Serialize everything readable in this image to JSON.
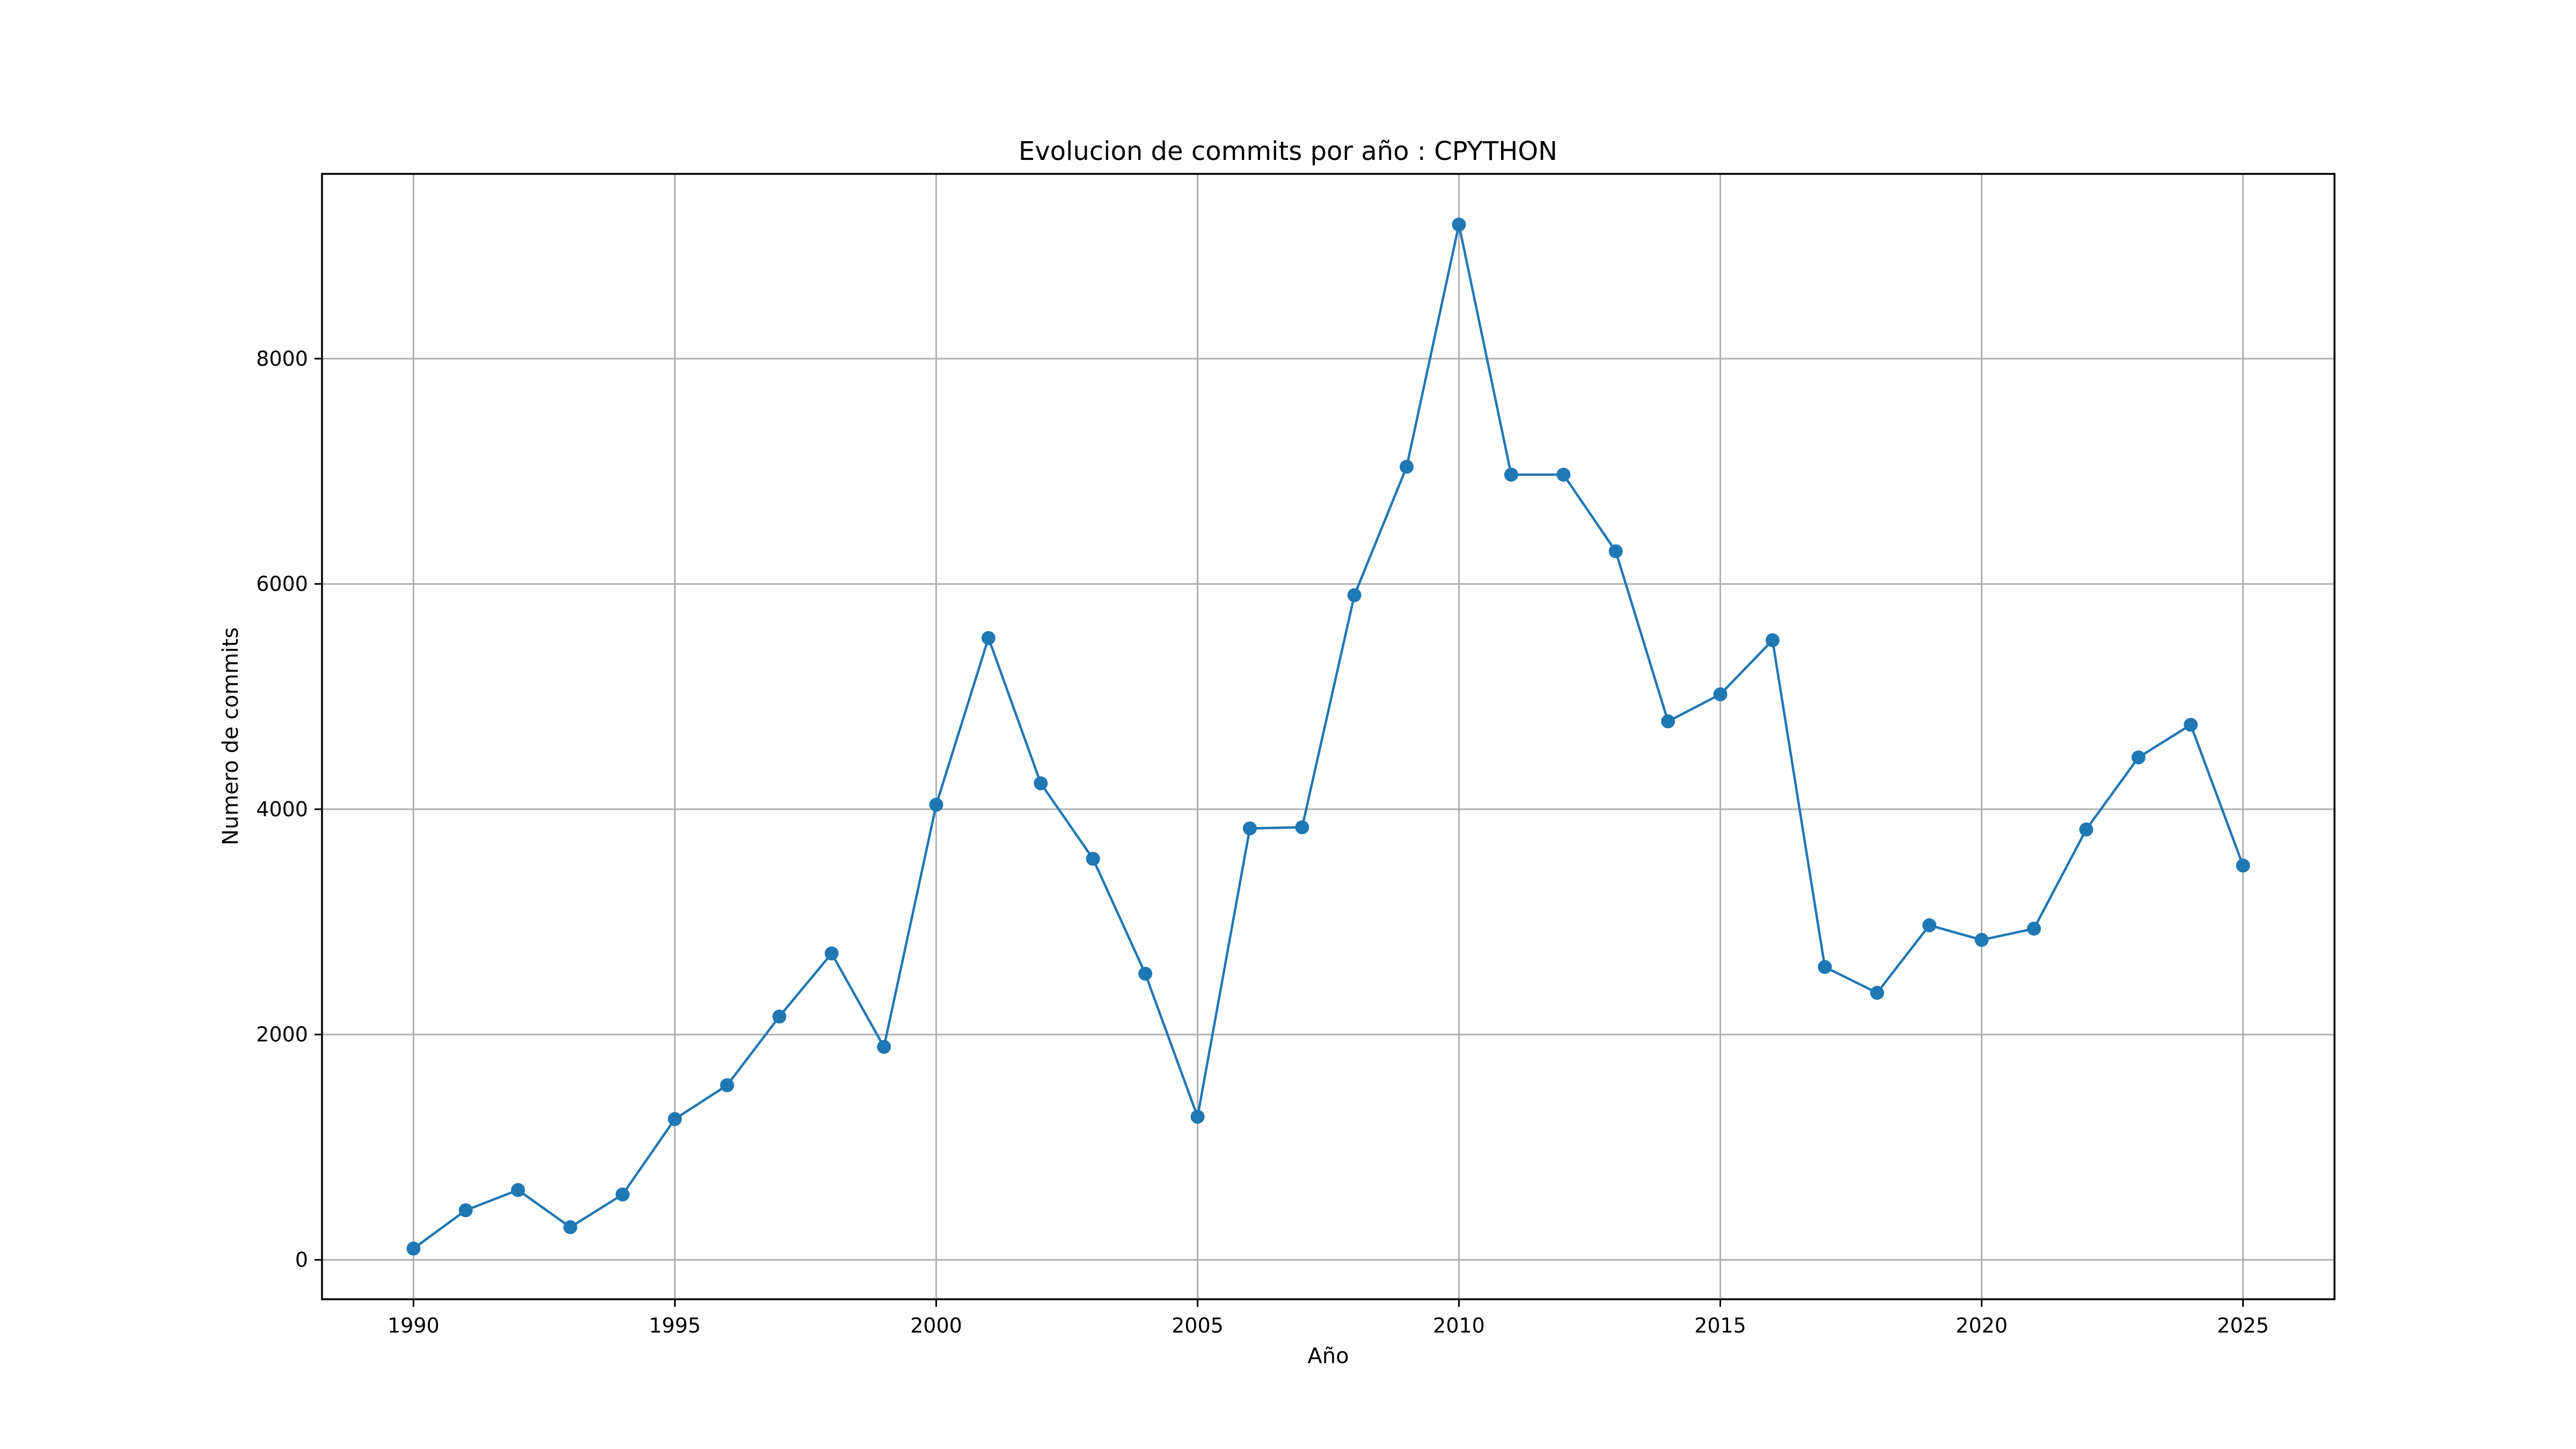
{
  "chart_data": {
    "type": "line",
    "title": "Evolucion de commits por año : CPYTHON",
    "xlabel": "Año",
    "ylabel": "Numero de commits",
    "x": [
      1990,
      1991,
      1992,
      1993,
      1994,
      1995,
      1996,
      1997,
      1998,
      1999,
      2000,
      2001,
      2002,
      2003,
      2004,
      2005,
      2006,
      2007,
      2008,
      2009,
      2010,
      2011,
      2012,
      2013,
      2014,
      2015,
      2016,
      2017,
      2018,
      2019,
      2020,
      2021,
      2022,
      2023,
      2024,
      2025
    ],
    "series": [
      {
        "values": [
          100,
          440,
          620,
          290,
          580,
          1250,
          1550,
          2160,
          2720,
          1890,
          4040,
          5520,
          4230,
          3560,
          2540,
          1270,
          3830,
          3840,
          5900,
          7040,
          9190,
          6970,
          6970,
          6290,
          4780,
          5020,
          5500,
          2600,
          2370,
          2970,
          2840,
          2940,
          3820,
          4460,
          4750,
          3500
        ],
        "color": "#1f77b4"
      }
    ],
    "xlim": [
      1988.25,
      2026.75
    ],
    "ylim": [
      -350,
      9640
    ],
    "xticks": [
      "1990",
      "1995",
      "2000",
      "2005",
      "2010",
      "2015",
      "2020",
      "2025"
    ],
    "yticks": [
      "0",
      "2000",
      "4000",
      "6000",
      "8000"
    ],
    "grid": true,
    "legend": "none"
  }
}
